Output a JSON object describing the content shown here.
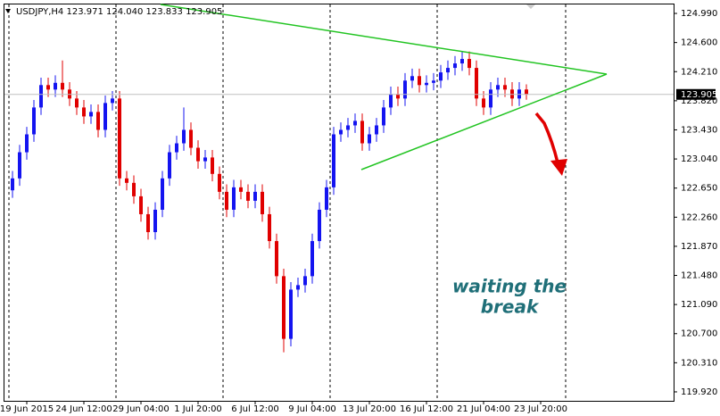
{
  "chart_data": {
    "type": "candlestick",
    "header": "USDJPY,H4 123.971 124.040 123.833 123.905",
    "annotation": [
      "waiting the",
      "break"
    ],
    "categories": [
      null,
      null,
      "19 Jun 2015",
      null,
      null,
      null,
      null,
      null,
      null,
      null,
      "24 Jun 12:00",
      null,
      null,
      null,
      null,
      null,
      null,
      null,
      "29 Jun 04:00",
      null,
      null,
      null,
      null,
      null,
      null,
      null,
      "1 Jul 20:00",
      null,
      null,
      null,
      null,
      null,
      null,
      null,
      "6 Jul 12:00",
      null,
      null,
      null,
      null,
      null,
      null,
      null,
      "9 Jul 04:00",
      null,
      null,
      null,
      null,
      null,
      null,
      null,
      "13 Jul 20:00",
      null,
      null,
      null,
      null,
      null,
      null,
      null,
      "16 Jul 12:00",
      null,
      null,
      null,
      null,
      null,
      null,
      null,
      "21 Jul 04:00",
      null,
      null,
      null,
      null,
      null,
      null,
      null,
      "23 Jul 20:00"
    ],
    "open": [
      122.62,
      122.78,
      123.13,
      123.37,
      123.73,
      124.03,
      123.97,
      124.06,
      123.97,
      123.85,
      123.73,
      123.61,
      123.67,
      123.43,
      123.79,
      123.85,
      122.78,
      122.72,
      122.54,
      122.3,
      122.06,
      122.36,
      122.78,
      123.13,
      123.25,
      123.43,
      123.19,
      123.01,
      123.06,
      122.84,
      122.6,
      122.36,
      122.66,
      122.6,
      122.48,
      122.6,
      122.3,
      121.94,
      121.47,
      120.63,
      121.29,
      121.35,
      121.47,
      121.94,
      122.36,
      122.66,
      123.37,
      123.43,
      123.49,
      123.55,
      123.25,
      123.37,
      123.49,
      123.73,
      123.91,
      123.85,
      124.09,
      124.15,
      124.03,
      124.06,
      124.09,
      124.2,
      124.26,
      124.32,
      124.38,
      124.26,
      123.85,
      123.73,
      123.97,
      124.03,
      123.97,
      123.85,
      123.971,
      null,
      null
    ],
    "high": [
      122.88,
      123.23,
      123.47,
      123.83,
      124.13,
      124.13,
      124.16,
      124.36,
      124.07,
      123.95,
      123.83,
      123.77,
      123.77,
      123.89,
      123.95,
      123.95,
      122.88,
      122.82,
      122.64,
      122.4,
      122.46,
      122.88,
      123.23,
      123.35,
      123.73,
      123.53,
      123.29,
      123.16,
      123.16,
      122.94,
      122.7,
      122.76,
      122.76,
      122.7,
      122.7,
      122.7,
      122.4,
      122.04,
      121.57,
      121.39,
      121.45,
      121.57,
      122.04,
      122.46,
      122.76,
      123.47,
      123.53,
      123.59,
      123.65,
      123.65,
      123.47,
      123.59,
      123.83,
      124.01,
      124.01,
      124.19,
      124.25,
      124.25,
      124.16,
      124.19,
      124.3,
      124.36,
      124.42,
      124.48,
      124.48,
      124.36,
      123.95,
      124.07,
      124.13,
      124.13,
      124.07,
      124.07,
      124.04,
      null,
      null
    ],
    "low": [
      122.52,
      122.68,
      123.03,
      123.27,
      123.63,
      123.87,
      123.87,
      123.87,
      123.75,
      123.63,
      123.51,
      123.51,
      123.33,
      123.33,
      123.69,
      122.68,
      122.62,
      122.44,
      122.2,
      121.96,
      121.96,
      122.26,
      122.68,
      123.03,
      123.15,
      123.09,
      122.91,
      122.91,
      122.74,
      122.5,
      122.26,
      122.26,
      122.5,
      122.38,
      122.38,
      122.2,
      121.84,
      121.37,
      120.45,
      120.53,
      121.19,
      121.25,
      121.37,
      121.84,
      122.26,
      122.56,
      123.27,
      123.33,
      123.39,
      123.15,
      123.15,
      123.27,
      123.39,
      123.63,
      123.75,
      123.75,
      123.99,
      123.93,
      123.93,
      123.96,
      123.99,
      124.1,
      124.16,
      124.22,
      124.16,
      123.75,
      123.63,
      123.63,
      123.87,
      123.87,
      123.75,
      123.75,
      123.833,
      null,
      null
    ],
    "close": [
      122.78,
      123.13,
      123.37,
      123.73,
      124.03,
      123.97,
      124.06,
      123.97,
      123.85,
      123.73,
      123.61,
      123.67,
      123.43,
      123.79,
      123.85,
      122.78,
      122.72,
      122.54,
      122.3,
      122.06,
      122.36,
      122.78,
      123.13,
      123.25,
      123.43,
      123.19,
      123.01,
      123.06,
      122.84,
      122.6,
      122.36,
      122.66,
      122.6,
      122.48,
      122.6,
      122.3,
      121.94,
      121.47,
      120.63,
      121.29,
      121.35,
      121.47,
      121.94,
      122.36,
      122.66,
      123.37,
      123.43,
      123.49,
      123.55,
      123.25,
      123.37,
      123.49,
      123.73,
      123.91,
      123.85,
      124.09,
      124.15,
      124.03,
      124.06,
      124.09,
      124.2,
      124.26,
      124.32,
      124.38,
      124.26,
      123.85,
      123.73,
      123.97,
      124.03,
      123.97,
      123.85,
      123.97,
      123.905,
      null,
      null
    ],
    "up_color": "#1414f0",
    "down_color": "#e00000",
    "last_price": {
      "value": 123.905,
      "label": "123.905"
    },
    "ylim": [
      119.8,
      125.11
    ],
    "yticks": [
      {
        "value": 124.99,
        "label": "124.990"
      },
      {
        "value": 124.6,
        "label": "124.600"
      },
      {
        "value": 124.21,
        "label": "124.210"
      },
      {
        "value": 123.82,
        "label": "123.820"
      },
      {
        "value": 123.43,
        "label": "123.430"
      },
      {
        "value": 123.04,
        "label": "123.040"
      },
      {
        "value": 122.65,
        "label": "122.650"
      },
      {
        "value": 122.26,
        "label": "122.260"
      },
      {
        "value": 121.87,
        "label": "121.870"
      },
      {
        "value": 121.48,
        "label": "121.480"
      },
      {
        "value": 121.09,
        "label": "121.090"
      },
      {
        "value": 120.7,
        "label": "120.700"
      },
      {
        "value": 120.31,
        "label": "120.310"
      },
      {
        "value": 119.92,
        "label": "119.920"
      }
    ]
  }
}
